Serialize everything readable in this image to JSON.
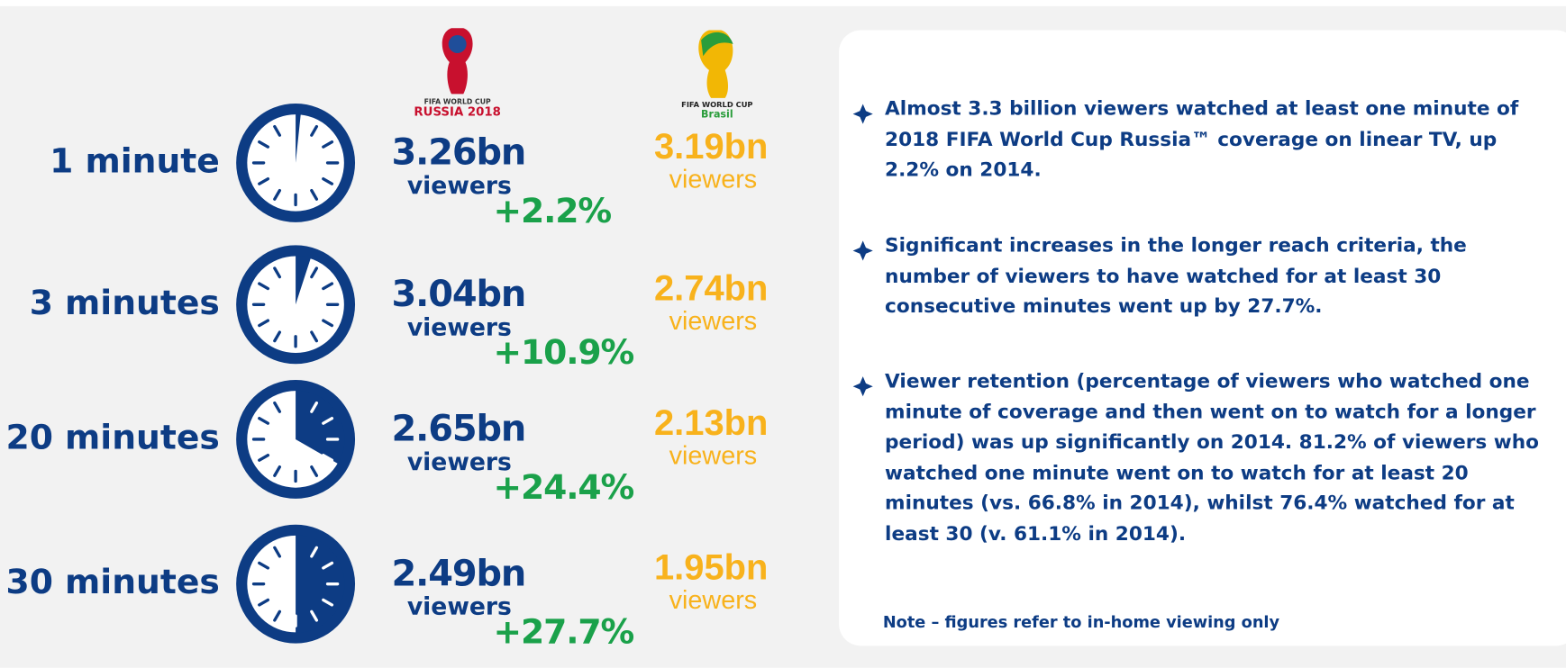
{
  "logos": {
    "russia": {
      "top": "FIFA WORLD CUP",
      "bottom": "RUSSIA 2018"
    },
    "brasil": {
      "top": "FIFA WORLD CUP",
      "bottom": "Brasil"
    }
  },
  "rows": [
    {
      "label": "1 minute",
      "russia": "3.26bn",
      "russia_unit": "viewers",
      "change": "+2.2%",
      "brasil": "3.19bn",
      "brasil_unit": "viewers"
    },
    {
      "label": "3 minutes",
      "russia": "3.04bn",
      "russia_unit": "viewers",
      "change": "+10.9%",
      "brasil": "2.74bn",
      "brasil_unit": "viewers"
    },
    {
      "label": "20 minutes",
      "russia": "2.65bn",
      "russia_unit": "viewers",
      "change": "+24.4%",
      "brasil": "2.13bn",
      "brasil_unit": "viewers"
    },
    {
      "label": "30 minutes",
      "russia": "2.49bn",
      "russia_unit": "viewers",
      "change": "+27.7%",
      "brasil": "1.95bn",
      "brasil_unit": "viewers"
    }
  ],
  "bullets": [
    "Almost 3.3 billion viewers watched at least one minute of 2018 FIFA World Cup Russia™ coverage on linear TV, up 2.2% on 2014.",
    "Significant increases in the longer reach criteria, the number of viewers to have watched for at least 30 consecutive minutes went up by 27.7%.",
    "Viewer retention (percentage of viewers who watched one minute of coverage and then went on to watch for a longer period) was up significantly on 2014. 81.2% of viewers who watched one minute went on to watch for at least 20 minutes (vs. 66.8% in 2014), whilst 76.4% watched for at least 30 (v. 61.1% in 2014)."
  ],
  "note": "Note – figures refer to in-home viewing only"
}
